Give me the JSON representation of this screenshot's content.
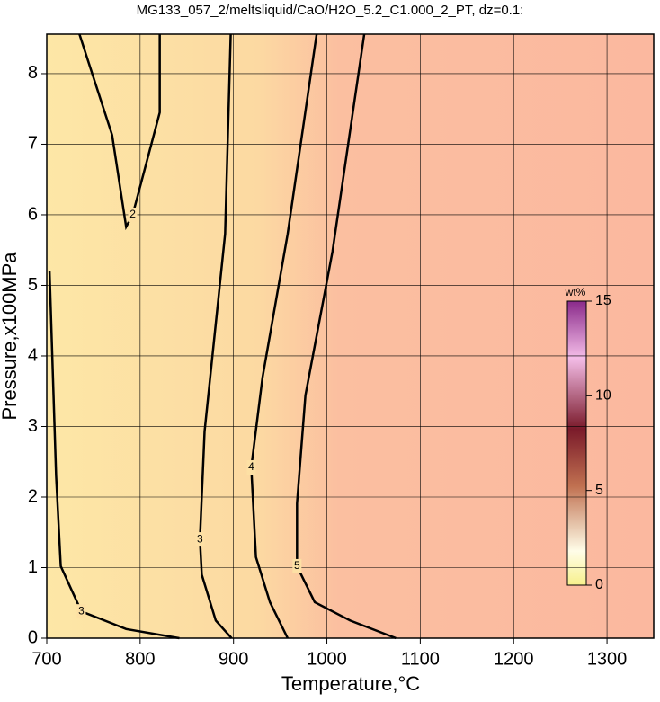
{
  "chart_data": {
    "type": "contour",
    "title": "MG133_057_2/meltsliquid/CaO/H2O_5.2_C1.000_2_PT, dz=0.1:",
    "x_label": "Temperature,°C",
    "y_label": "Pressure,x100MPa",
    "xlim": [
      700,
      1350
    ],
    "ylim": [
      0,
      8.56
    ],
    "xticks": [
      700,
      800,
      900,
      1000,
      1100,
      1200,
      1300
    ],
    "yticks": [
      0,
      1,
      2,
      3,
      4,
      5,
      6,
      7,
      8
    ],
    "grid": true,
    "contours": [
      {
        "level": 2,
        "x": [
          735,
          770,
          785,
          792,
          821,
          821
        ],
        "y": [
          8.56,
          7.13,
          5.83,
          6.0,
          7.45,
          8.56
        ]
      },
      {
        "level": 3,
        "x": [
          703,
          710,
          715,
          737,
          785,
          842
        ],
        "y": [
          5.2,
          2.3,
          1.02,
          0.38,
          0.13,
          0
        ]
      },
      {
        "level": 3,
        "x": [
          897,
          891,
          869,
          864,
          866,
          881,
          898
        ],
        "y": [
          8.56,
          5.73,
          2.93,
          1.4,
          0.9,
          0.25,
          0
        ]
      },
      {
        "level": 4,
        "x": [
          989,
          958,
          931,
          919,
          924,
          939,
          958
        ],
        "y": [
          8.56,
          5.73,
          3.69,
          2.42,
          1.15,
          0.51,
          0
        ]
      },
      {
        "level": 5,
        "x": [
          1040,
          1006,
          977,
          968,
          968,
          987,
          1025,
          1074
        ],
        "y": [
          8.56,
          5.48,
          3.44,
          1.91,
          1.02,
          0.51,
          0.25,
          0
        ]
      }
    ],
    "colorbar": {
      "label": "wt%",
      "lim": [
        0,
        15
      ],
      "ticks": [
        0,
        5,
        10,
        15
      ]
    }
  }
}
